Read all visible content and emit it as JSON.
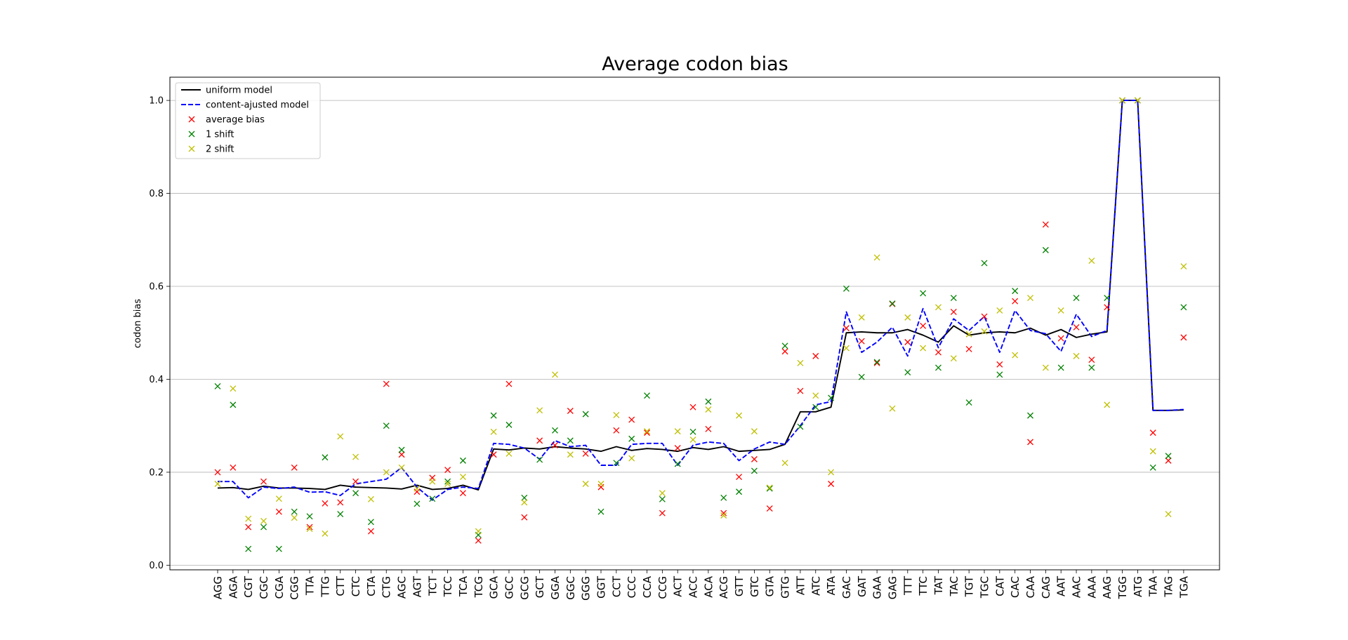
{
  "chart_data": {
    "type": "line",
    "title": "Average codon bias",
    "xlabel": "",
    "ylabel": "codon bias",
    "ylim": [
      -0.01,
      1.05
    ],
    "yticks": [
      "0.0",
      "0.2",
      "0.4",
      "0.6",
      "0.8",
      "1.0"
    ],
    "grid": "y",
    "legend_position": "top-left",
    "categories": [
      "AGG",
      "AGA",
      "CGT",
      "CGC",
      "CGA",
      "CGG",
      "TTA",
      "TTG",
      "CTT",
      "CTC",
      "CTA",
      "CTG",
      "AGC",
      "AGT",
      "TCT",
      "TCC",
      "TCA",
      "TCG",
      "GCA",
      "GCC",
      "GCG",
      "GCT",
      "GGA",
      "GGC",
      "GGG",
      "GGT",
      "CCT",
      "CCC",
      "CCA",
      "CCG",
      "ACT",
      "ACC",
      "ACA",
      "ACG",
      "GTT",
      "GTC",
      "GTA",
      "GTG",
      "ATT",
      "ATC",
      "ATA",
      "GAC",
      "GAT",
      "GAA",
      "GAG",
      "TTT",
      "TTC",
      "TAT",
      "TAC",
      "TGT",
      "TGC",
      "CAT",
      "CAC",
      "CAA",
      "CAG",
      "AAT",
      "AAC",
      "AAA",
      "AAG",
      "TGG",
      "ATG",
      "TAA",
      "TAG",
      "TGA"
    ],
    "series": [
      {
        "name": "uniform model",
        "style": "line",
        "color": "#000000",
        "values": [
          0.166,
          0.167,
          0.163,
          0.17,
          0.166,
          0.166,
          0.165,
          0.163,
          0.172,
          0.168,
          0.167,
          0.166,
          0.164,
          0.172,
          0.163,
          0.165,
          0.172,
          0.162,
          0.25,
          0.248,
          0.252,
          0.25,
          0.255,
          0.252,
          0.25,
          0.245,
          0.255,
          0.247,
          0.251,
          0.249,
          0.245,
          0.253,
          0.249,
          0.255,
          0.245,
          0.247,
          0.249,
          0.26,
          0.33,
          0.33,
          0.34,
          0.5,
          0.502,
          0.5,
          0.5,
          0.507,
          0.495,
          0.48,
          0.515,
          0.495,
          0.5,
          0.502,
          0.5,
          0.51,
          0.495,
          0.507,
          0.49,
          0.497,
          0.502,
          1.0,
          1.0,
          0.333,
          0.333,
          0.334
        ]
      },
      {
        "name": "content-ajusted model",
        "style": "dashed",
        "color": "#0000ff",
        "values": [
          0.18,
          0.18,
          0.145,
          0.168,
          0.165,
          0.168,
          0.157,
          0.158,
          0.15,
          0.175,
          0.18,
          0.185,
          0.21,
          0.168,
          0.14,
          0.163,
          0.168,
          0.165,
          0.262,
          0.26,
          0.252,
          0.228,
          0.268,
          0.255,
          0.258,
          0.215,
          0.215,
          0.26,
          0.262,
          0.262,
          0.215,
          0.258,
          0.265,
          0.262,
          0.225,
          0.25,
          0.265,
          0.26,
          0.3,
          0.345,
          0.352,
          0.545,
          0.458,
          0.48,
          0.512,
          0.45,
          0.552,
          0.468,
          0.53,
          0.505,
          0.535,
          0.458,
          0.548,
          0.505,
          0.498,
          0.46,
          0.54,
          0.492,
          0.505,
          1.0,
          1.0,
          0.333,
          0.333,
          0.335
        ]
      },
      {
        "name": "average bias",
        "style": "marker",
        "color": "#ff0000",
        "values": [
          0.2,
          0.21,
          0.082,
          0.18,
          0.115,
          0.21,
          0.082,
          0.133,
          0.135,
          0.18,
          0.073,
          0.39,
          0.238,
          0.158,
          0.188,
          0.205,
          0.155,
          0.053,
          0.238,
          0.39,
          0.103,
          0.268,
          0.258,
          0.332,
          0.24,
          0.168,
          0.29,
          0.313,
          0.285,
          0.112,
          0.252,
          0.34,
          0.293,
          0.112,
          0.19,
          0.228,
          0.122,
          0.46,
          0.375,
          0.45,
          0.175,
          0.51,
          0.482,
          0.435,
          0.562,
          0.48,
          0.515,
          0.458,
          0.545,
          0.465,
          0.535,
          0.432,
          0.568,
          0.265,
          0.733,
          0.488,
          0.512,
          0.442,
          0.555,
          1.0,
          1.0,
          0.285,
          0.225,
          0.49
        ]
      },
      {
        "name": "1 shift",
        "style": "marker",
        "color": "#008000",
        "values": [
          0.385,
          0.345,
          0.035,
          0.082,
          0.035,
          0.115,
          0.105,
          0.232,
          0.11,
          0.155,
          0.093,
          0.3,
          0.248,
          0.132,
          0.143,
          0.18,
          0.225,
          0.065,
          0.322,
          0.302,
          0.145,
          0.227,
          0.29,
          0.268,
          0.325,
          0.115,
          0.22,
          0.272,
          0.365,
          0.142,
          0.218,
          0.287,
          0.352,
          0.145,
          0.158,
          0.203,
          0.165,
          0.472,
          0.298,
          0.34,
          0.36,
          0.595,
          0.405,
          0.437,
          0.563,
          0.415,
          0.585,
          0.425,
          0.575,
          0.35,
          0.65,
          0.41,
          0.59,
          0.322,
          0.678,
          0.425,
          0.575,
          0.425,
          0.575,
          1.0,
          1.0,
          0.21,
          0.235,
          0.555
        ]
      },
      {
        "name": "2 shift",
        "style": "marker",
        "color": "#bfbf00",
        "values": [
          0.175,
          0.38,
          0.1,
          0.095,
          0.143,
          0.102,
          0.078,
          0.068,
          0.277,
          0.233,
          0.142,
          0.2,
          0.21,
          0.165,
          0.18,
          0.175,
          0.19,
          0.073,
          0.287,
          0.24,
          0.135,
          0.333,
          0.41,
          0.238,
          0.175,
          0.175,
          0.323,
          0.23,
          0.288,
          0.155,
          0.288,
          0.27,
          0.335,
          0.107,
          0.322,
          0.288,
          0.167,
          0.22,
          0.435,
          0.365,
          0.2,
          0.467,
          0.533,
          0.662,
          0.337,
          0.533,
          0.467,
          0.555,
          0.445,
          0.497,
          0.503,
          0.548,
          0.452,
          0.575,
          0.425,
          0.548,
          0.45,
          0.655,
          0.345,
          1.0,
          1.0,
          0.245,
          0.11,
          0.643
        ]
      }
    ]
  }
}
